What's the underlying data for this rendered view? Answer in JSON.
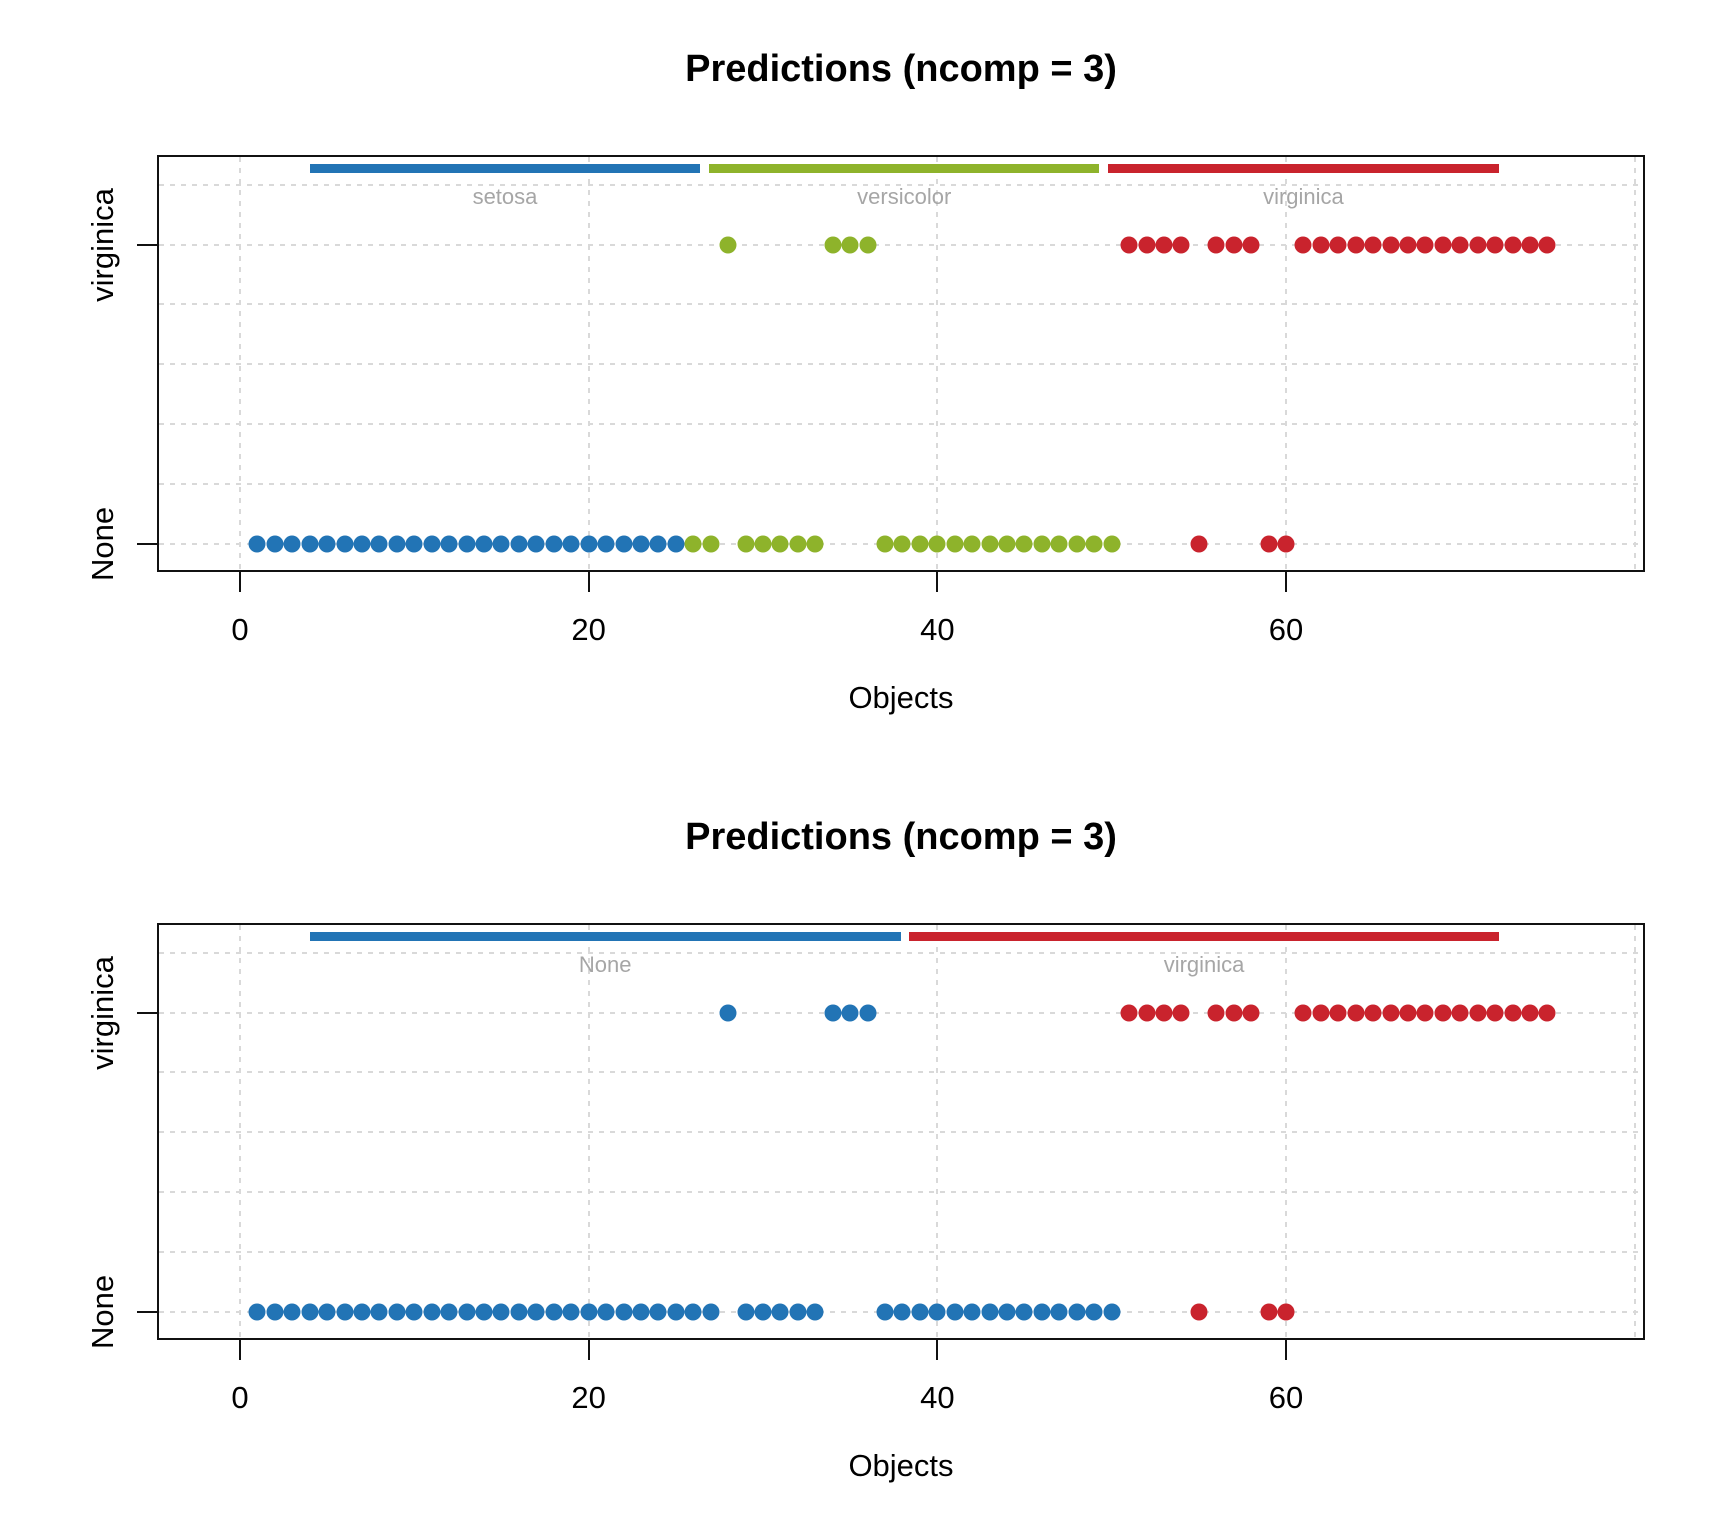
{
  "figure": {
    "background": "#ffffff"
  },
  "palette": {
    "blue": "#2274B5",
    "green": "#8EB32B",
    "red": "#C9232D",
    "label_gray": "#A6A6A6",
    "grid_gray": "#D9D9D9",
    "axis_black": "#111111"
  },
  "chart_data": [
    {
      "type": "scatter",
      "title": "Predictions (ncomp = 3)",
      "xlabel": "Objects",
      "ylabel": "",
      "x_ticks": [
        0,
        20,
        40,
        60
      ],
      "x_gridlines": [
        0,
        20,
        40,
        60,
        80
      ],
      "xlim": [
        -4.8,
        80.6
      ],
      "y_categories": [
        "None",
        "virginica"
      ],
      "grid": true,
      "legend_position": "top-bars",
      "group_bars": [
        {
          "label": "setosa",
          "color": "blue",
          "from": 4.0,
          "to": 26.4
        },
        {
          "label": "versicolor",
          "color": "green",
          "from": 26.9,
          "to": 49.3
        },
        {
          "label": "virginica",
          "color": "red",
          "from": 49.8,
          "to": 72.2
        }
      ],
      "series": [
        {
          "name": "setosa",
          "color": "blue",
          "rows": {
            "None": [
              1,
              2,
              3,
              4,
              5,
              6,
              7,
              8,
              9,
              10,
              11,
              12,
              13,
              14,
              15,
              16,
              17,
              18,
              19,
              20,
              21,
              22,
              23,
              24,
              25
            ],
            "virginica": []
          }
        },
        {
          "name": "versicolor",
          "color": "green",
          "rows": {
            "None": [
              26,
              27,
              29,
              30,
              31,
              32,
              33,
              37,
              38,
              39,
              40,
              41,
              42,
              43,
              44,
              45,
              46,
              47,
              48,
              49,
              50
            ],
            "virginica": [
              28,
              34,
              35,
              36
            ]
          }
        },
        {
          "name": "virginica",
          "color": "red",
          "rows": {
            "None": [
              55,
              59,
              60
            ],
            "virginica": [
              51,
              52,
              53,
              54,
              56,
              57,
              58,
              61,
              62,
              63,
              64,
              65,
              66,
              67,
              68,
              69,
              70,
              71,
              72,
              73,
              74,
              75
            ]
          }
        }
      ]
    },
    {
      "type": "scatter",
      "title": "Predictions (ncomp = 3)",
      "xlabel": "Objects",
      "ylabel": "",
      "x_ticks": [
        0,
        20,
        40,
        60
      ],
      "x_gridlines": [
        0,
        20,
        40,
        60,
        80
      ],
      "xlim": [
        -4.8,
        80.6
      ],
      "y_categories": [
        "None",
        "virginica"
      ],
      "grid": true,
      "legend_position": "top-bars",
      "group_bars": [
        {
          "label": "None",
          "color": "blue",
          "from": 4.0,
          "to": 37.9
        },
        {
          "label": "virginica",
          "color": "red",
          "from": 38.4,
          "to": 72.2
        }
      ],
      "series": [
        {
          "name": "None",
          "color": "blue",
          "rows": {
            "None": [
              1,
              2,
              3,
              4,
              5,
              6,
              7,
              8,
              9,
              10,
              11,
              12,
              13,
              14,
              15,
              16,
              17,
              18,
              19,
              20,
              21,
              22,
              23,
              24,
              25,
              26,
              27,
              29,
              30,
              31,
              32,
              33,
              37,
              38,
              39,
              40,
              41,
              42,
              43,
              44,
              45,
              46,
              47,
              48,
              49,
              50
            ],
            "virginica": [
              28,
              34,
              35,
              36
            ]
          }
        },
        {
          "name": "virginica",
          "color": "red",
          "rows": {
            "None": [
              55,
              59,
              60
            ],
            "virginica": [
              51,
              52,
              53,
              54,
              56,
              57,
              58,
              61,
              62,
              63,
              64,
              65,
              66,
              67,
              68,
              69,
              70,
              71,
              72,
              73,
              74,
              75
            ]
          }
        }
      ]
    }
  ]
}
